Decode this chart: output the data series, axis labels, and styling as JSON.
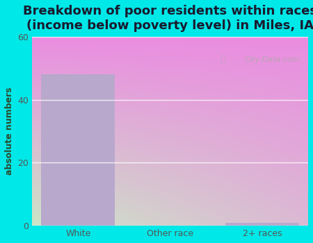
{
  "categories": [
    "White",
    "Other race",
    "2+ races"
  ],
  "values": [
    48,
    0,
    1
  ],
  "bar_color": "#b8a8cc",
  "title_line1": "Breakdown of poor residents within races",
  "title_line2": "(income below poverty level) in Miles, IA",
  "ylabel": "absolute numbers",
  "ylim": [
    0,
    60
  ],
  "yticks": [
    0,
    20,
    40,
    60
  ],
  "outer_bg": "#00e8e8",
  "grid_color": "#e0ece0",
  "title_color": "#1a1a2e",
  "axis_label_color": "#2d4a2d",
  "tick_label_color": "#555555",
  "watermark_text": "City-Data.com",
  "title_fontsize": 13,
  "ylabel_fontsize": 9,
  "plot_bg_topleft": "#f0fff0",
  "plot_bg_topright": "#ffffff",
  "plot_bg_bottomleft": "#d8f0d8",
  "plot_bg_bottomright": "#eefaea"
}
